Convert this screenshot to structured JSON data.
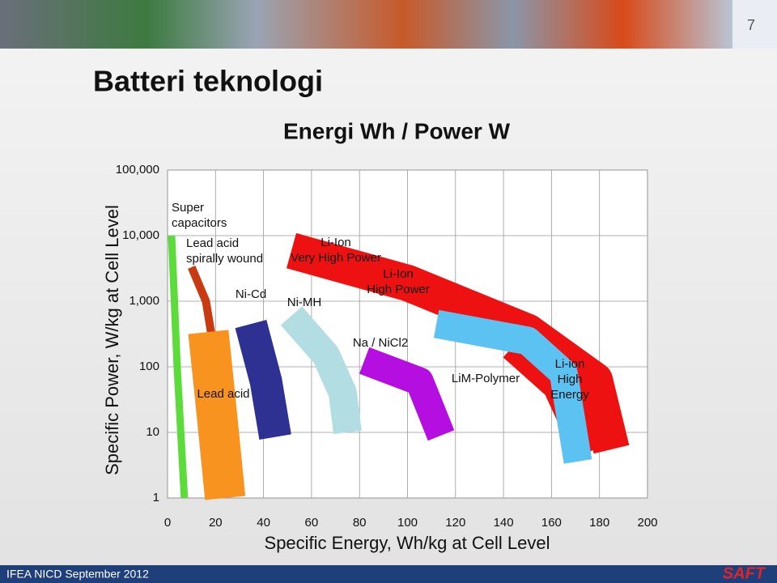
{
  "header": {
    "page_number": "7",
    "title": "Batteri teknologi"
  },
  "footer": {
    "text": "IFEA NICD September 2012",
    "logo": "SAFT"
  },
  "chart_data": {
    "type": "ragone",
    "title": "Energi Wh / Power W",
    "x_label": "Specific Energy, Wh/kg at Cell Level",
    "y_label": "Specific Power, W/kg at Cell Level",
    "xlim": [
      0,
      200
    ],
    "xticks": [
      0,
      20,
      40,
      60,
      80,
      100,
      120,
      140,
      160,
      180,
      200
    ],
    "ylim": [
      1,
      100000
    ],
    "log_y": true,
    "grid": true,
    "yticks": [
      1,
      10,
      100,
      {
        "value": 1000,
        "label": "1,000"
      },
      {
        "value": 10000,
        "label": "10,000"
      },
      {
        "value": 100000,
        "label": "100,000"
      }
    ],
    "regions": [
      {
        "color": "#5cdc3a",
        "x": [
          1.7,
          4,
          7
        ],
        "y": [
          10000,
          100,
          1
        ]
      },
      {
        "color": "#c83a12",
        "x": [
          10,
          16,
          20.6
        ],
        "y": [
          3300,
          1000,
          95
        ]
      },
      {
        "color": "#f7931e",
        "x": [
          17,
          20,
          24
        ],
        "y": [
          340,
          30,
          1
        ]
      },
      {
        "color": "#2e3192",
        "x": [
          34.7,
          41,
          44.9
        ],
        "y": [
          450,
          60,
          8.5
        ]
      },
      {
        "color": "#b2dde3",
        "x": [
          51.6,
          66,
          73,
          75
        ],
        "y": [
          600,
          150,
          40,
          10
        ]
      },
      {
        "color": "#b40fe0",
        "x": [
          82,
          105,
          114
        ],
        "y": [
          125,
          60,
          9
        ]
      },
      {
        "color": "#5bc2f2",
        "x": [
          112,
          150,
          165,
          171
        ],
        "y": [
          450,
          250,
          80,
          3.6
        ]
      },
      {
        "color": "#ee1111",
        "x": [
          51.6,
          100,
          150,
          178,
          185
        ],
        "y": [
          5900,
          1900,
          340,
          62,
          5.5
        ]
      },
      {
        "color": "#ee1111",
        "x": [
          146,
          165,
          178
        ],
        "y": [
          250,
          60,
          5.5
        ]
      }
    ],
    "annotations": [
      {
        "lines": [
          "Super",
          "capacitors"
        ]
      },
      {
        "lines": [
          "Lead acid",
          "spirally wound"
        ]
      },
      {
        "lines": [
          "Li-Ion",
          "Very High Power"
        ]
      },
      {
        "lines": [
          "Li-Ion",
          "High Power"
        ]
      },
      {
        "lines": [
          "Ni-Cd"
        ]
      },
      {
        "lines": [
          "Ni-MH"
        ]
      },
      {
        "lines": [
          "Na / NiCl2"
        ]
      },
      {
        "lines": [
          "Lead acid"
        ]
      },
      {
        "lines": [
          "LiM-Polymer"
        ]
      },
      {
        "lines": [
          "Li-ion",
          "High",
          "Energy"
        ]
      }
    ]
  }
}
